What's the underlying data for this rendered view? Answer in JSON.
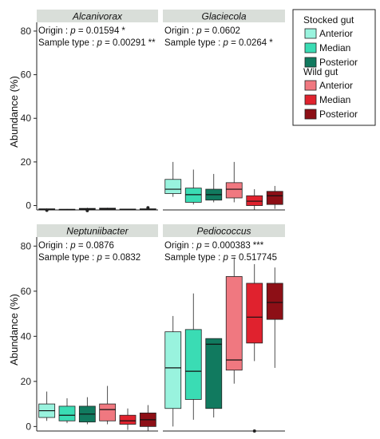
{
  "chart_data": {
    "type": "box",
    "ylabel": "Abundance (%)",
    "yticks": [
      0,
      20,
      40,
      60,
      80
    ],
    "legend": {
      "placement": "right",
      "groups": [
        {
          "title": "Stocked gut",
          "items": [
            {
              "label": "Anterior",
              "color": "#99F3DE"
            },
            {
              "label": "Median",
              "color": "#3ADCB4"
            },
            {
              "label": "Posterior",
              "color": "#117A5F"
            }
          ]
        },
        {
          "title": "Wild gut",
          "items": [
            {
              "label": "Anterior",
              "color": "#F07880"
            },
            {
              "label": "Median",
              "color": "#E0222E"
            },
            {
              "label": "Posterior",
              "color": "#8D0F16"
            }
          ]
        }
      ]
    },
    "panels": [
      {
        "title": "Alcanivorax",
        "ylim": [
          -2,
          84
        ],
        "stats": [
          {
            "prefix": "Origin : ",
            "pval": "0.01594",
            "sig": "*"
          },
          {
            "prefix": "Sample type : ",
            "pval": "0.00291",
            "sig": "**"
          }
        ],
        "boxes": [
          {
            "min": -2.1,
            "q1": -1.9,
            "median": -1.7,
            "q3": -1.5,
            "max": -1.3,
            "outliers": [
              -2.2
            ]
          },
          {
            "min": -2.0,
            "q1": -1.9,
            "median": -1.8,
            "q3": -1.7,
            "max": -1.6,
            "outliers": []
          },
          {
            "min": -2.2,
            "q1": -1.9,
            "median": -1.6,
            "q3": -1.3,
            "max": -1.0,
            "outliers": [
              -2.3
            ]
          },
          {
            "min": -2.0,
            "q1": -1.8,
            "median": -1.5,
            "q3": -1.2,
            "max": -1.0,
            "outliers": []
          },
          {
            "min": -2.0,
            "q1": -1.9,
            "median": -1.8,
            "q3": -1.6,
            "max": -1.5,
            "outliers": []
          },
          {
            "min": -2.0,
            "q1": -1.9,
            "median": -1.7,
            "q3": -1.5,
            "max": -1.3,
            "outliers": [
              -1.0
            ]
          }
        ]
      },
      {
        "title": "Glaciecola",
        "ylim": [
          -2,
          84
        ],
        "stats": [
          {
            "prefix": "Origin : ",
            "pval": "0.0602",
            "sig": ""
          },
          {
            "prefix": "Sample type : ",
            "pval": "0.0264",
            "sig": "*"
          }
        ],
        "boxes": [
          {
            "min": 4,
            "q1": 5.5,
            "median": 7.5,
            "q3": 12,
            "max": 20,
            "outliers": []
          },
          {
            "min": 0.5,
            "q1": 1.5,
            "median": 5,
            "q3": 8,
            "max": 16.5,
            "outliers": []
          },
          {
            "min": 1.5,
            "q1": 2.5,
            "median": 5,
            "q3": 7.5,
            "max": 14.5,
            "outliers": []
          },
          {
            "min": 1.5,
            "q1": 3.5,
            "median": 7.5,
            "q3": 10.5,
            "max": 20,
            "outliers": []
          },
          {
            "min": -2,
            "q1": 0,
            "median": 2,
            "q3": 4.5,
            "max": 7.5,
            "outliers": []
          },
          {
            "min": -1.5,
            "q1": 0.5,
            "median": 4.5,
            "q3": 6.5,
            "max": 9,
            "outliers": []
          }
        ]
      },
      {
        "title": "Neptuniibacter",
        "ylim": [
          -2,
          84
        ],
        "stats": [
          {
            "prefix": "Origin : ",
            "pval": "0.0876",
            "sig": ""
          },
          {
            "prefix": "Sample type : ",
            "pval": "0.0832",
            "sig": ""
          }
        ],
        "boxes": [
          {
            "min": 2.5,
            "q1": 4,
            "median": 7,
            "q3": 10,
            "max": 15.5,
            "outliers": []
          },
          {
            "min": 1.5,
            "q1": 2.5,
            "median": 5,
            "q3": 9,
            "max": 12.5,
            "outliers": []
          },
          {
            "min": 1,
            "q1": 2,
            "median": 5.5,
            "q3": 9,
            "max": 13,
            "outliers": []
          },
          {
            "min": 1,
            "q1": 2.5,
            "median": 7.5,
            "q3": 10,
            "max": 18,
            "outliers": []
          },
          {
            "min": -1.5,
            "q1": 1,
            "median": 2.5,
            "q3": 5,
            "max": 8,
            "outliers": []
          },
          {
            "min": -2,
            "q1": 0,
            "median": 3,
            "q3": 6,
            "max": 9.5,
            "outliers": []
          }
        ]
      },
      {
        "title": "Pediococcus",
        "ylim": [
          -2,
          84
        ],
        "stats": [
          {
            "prefix": "Origin : ",
            "pval": "0.000383",
            "sig": "***"
          },
          {
            "prefix": "Sample type : ",
            "pval": "0.517745",
            "sig": ""
          }
        ],
        "boxes": [
          {
            "min": 0,
            "q1": 8,
            "median": 26,
            "q3": 42,
            "max": 49,
            "outliers": []
          },
          {
            "min": 3,
            "q1": 12,
            "median": 24.5,
            "q3": 43,
            "max": 59,
            "outliers": []
          },
          {
            "min": 4,
            "q1": 8,
            "median": 36.5,
            "q3": 39,
            "max": 39,
            "outliers": []
          },
          {
            "min": 19,
            "q1": 25,
            "median": 29.5,
            "q3": 66.5,
            "max": 75,
            "outliers": []
          },
          {
            "min": 29,
            "q1": 37,
            "median": 48.5,
            "q3": 63.5,
            "max": 72,
            "outliers": [
              -2
            ]
          },
          {
            "min": 26,
            "q1": 47.5,
            "median": 55,
            "q3": 63.5,
            "max": 70.5,
            "outliers": []
          }
        ]
      }
    ]
  }
}
